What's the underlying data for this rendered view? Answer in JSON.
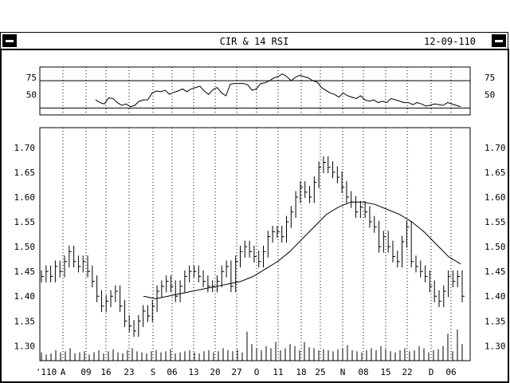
{
  "window": {
    "title": "CIR & 14 RSI",
    "date": "12-09-110",
    "left_button_icon": "minimize-icon",
    "right_button_icon": "minimize-icon"
  },
  "chart_data": [
    {
      "type": "line",
      "title": "",
      "panel": "RSI",
      "ylim": [
        20,
        90
      ],
      "yticks": [
        75,
        50
      ],
      "reference_lines": [
        70,
        30
      ],
      "grid": false,
      "series": [
        {
          "values": [
            42,
            38,
            36,
            45,
            44,
            38,
            34,
            36,
            32,
            34,
            40,
            42,
            42,
            52,
            55,
            54,
            56,
            50,
            53,
            55,
            58,
            54,
            58,
            60,
            62,
            55,
            50,
            57,
            60,
            52,
            48,
            65,
            66,
            66,
            66,
            64,
            56,
            58,
            66,
            67,
            70,
            74,
            76,
            80,
            76,
            70,
            75,
            78,
            76,
            74,
            70,
            68,
            60,
            56,
            52,
            50,
            46,
            52,
            48,
            46,
            44,
            48,
            42,
            40,
            42,
            38,
            40,
            38,
            44,
            42,
            40,
            38,
            38,
            35,
            38,
            36,
            33,
            34,
            36,
            35,
            34,
            38,
            36,
            34,
            32
          ]
        }
      ]
    },
    {
      "type": "ohlc",
      "title": "",
      "panel": "price",
      "ylim": [
        1.27,
        1.74
      ],
      "yticks": [
        "1.70",
        "1.65",
        "1.60",
        "1.55",
        "1.50",
        "1.45",
        "1.40",
        "1.35",
        "1.30"
      ],
      "x_tick_labels": [
        "'110",
        "A",
        "09",
        "16",
        "23",
        "S",
        "06",
        "13",
        "20",
        "27",
        "O",
        "11",
        "18",
        "25",
        "N",
        "08",
        "15",
        "22",
        "D",
        "06"
      ],
      "grid": "vertical-dotted",
      "closes": [
        1.44,
        1.45,
        1.44,
        1.46,
        1.45,
        1.47,
        1.49,
        1.47,
        1.46,
        1.47,
        1.45,
        1.43,
        1.4,
        1.38,
        1.39,
        1.4,
        1.41,
        1.38,
        1.35,
        1.34,
        1.33,
        1.35,
        1.37,
        1.36,
        1.38,
        1.41,
        1.42,
        1.43,
        1.42,
        1.4,
        1.42,
        1.44,
        1.45,
        1.45,
        1.44,
        1.43,
        1.42,
        1.42,
        1.43,
        1.45,
        1.46,
        1.42,
        1.47,
        1.49,
        1.5,
        1.49,
        1.48,
        1.47,
        1.49,
        1.52,
        1.53,
        1.53,
        1.52,
        1.55,
        1.57,
        1.6,
        1.62,
        1.61,
        1.6,
        1.63,
        1.66,
        1.67,
        1.66,
        1.65,
        1.64,
        1.62,
        1.6,
        1.59,
        1.57,
        1.58,
        1.57,
        1.55,
        1.54,
        1.5,
        1.52,
        1.5,
        1.48,
        1.47,
        1.51,
        1.54,
        1.47,
        1.46,
        1.45,
        1.44,
        1.42,
        1.4,
        1.39,
        1.41,
        1.44,
        1.43,
        1.44,
        1.4
      ],
      "moving_average": [
        1.4,
        1.395,
        1.4,
        1.405,
        1.41,
        1.415,
        1.42,
        1.425,
        1.43,
        1.44,
        1.455,
        1.47,
        1.49,
        1.515,
        1.54,
        1.565,
        1.58,
        1.59,
        1.59,
        1.585,
        1.575,
        1.565,
        1.55,
        1.53,
        1.505,
        1.48,
        1.465
      ],
      "volume": [
        8,
        6,
        7,
        10,
        8,
        9,
        12,
        7,
        8,
        9,
        6,
        8,
        10,
        7,
        9,
        11,
        8,
        7,
        10,
        12,
        9,
        8,
        7,
        9,
        10,
        8,
        9,
        11,
        7,
        8,
        9,
        10,
        8,
        7,
        9,
        10,
        8,
        9,
        12,
        10,
        9,
        11,
        8,
        28,
        16,
        12,
        10,
        14,
        12,
        18,
        10,
        12,
        16,
        14,
        10,
        18,
        13,
        12,
        10,
        11,
        10,
        9,
        11,
        12,
        15,
        10,
        9,
        8,
        10,
        12,
        10,
        14,
        11,
        9,
        8,
        10,
        12,
        9,
        10,
        14,
        12,
        8,
        10,
        11,
        14,
        26,
        9,
        30,
        16
      ]
    }
  ],
  "right_axis": {
    "rsi_ticks": [
      "75",
      "50"
    ],
    "price_ticks": [
      "1.70",
      "1.65",
      "1.60",
      "1.55",
      "1.50",
      "1.45",
      "1.40",
      "1.35",
      "1.30"
    ]
  }
}
